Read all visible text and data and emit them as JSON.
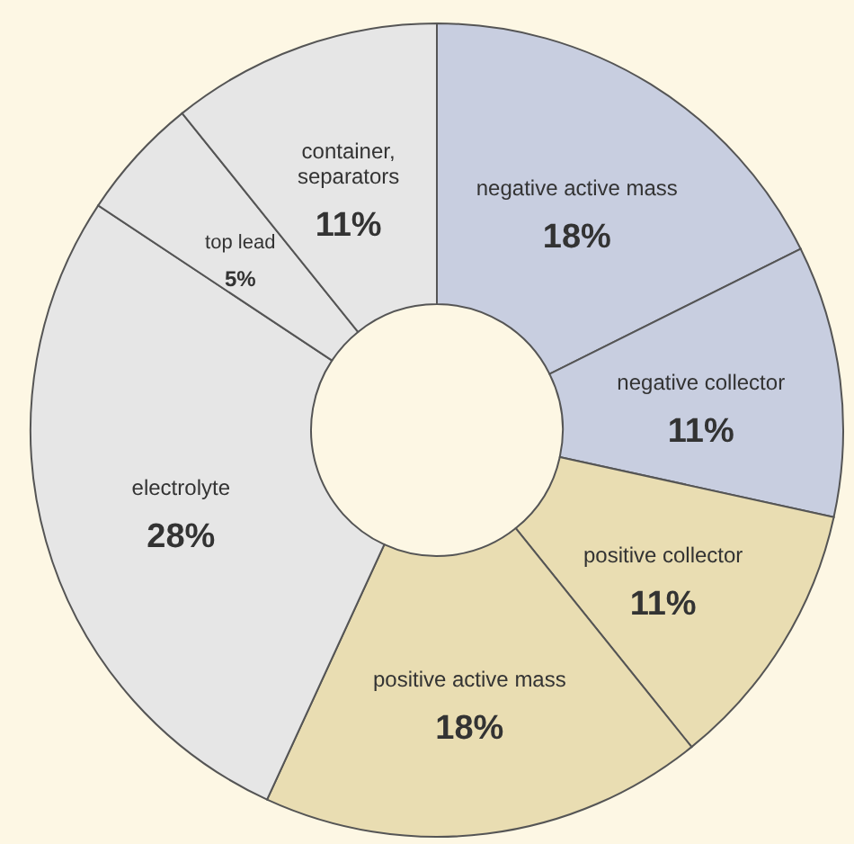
{
  "chart_data": {
    "type": "donut",
    "categories": [
      "negative active mass",
      "negative collector",
      "positive collector",
      "positive active mass",
      "electrolyte",
      "top lead",
      "container, separators"
    ],
    "values": [
      18,
      11,
      11,
      18,
      28,
      5,
      11
    ],
    "value_labels": [
      "18%",
      "11%",
      "11%",
      "18%",
      "28%",
      "5%",
      "11%"
    ],
    "colors": [
      "#c8cee0",
      "#c8cee0",
      "#e9ddb2",
      "#e9ddb2",
      "#e6e6e6",
      "#e6e6e6",
      "#e6e6e6"
    ],
    "legend": false
  }
}
